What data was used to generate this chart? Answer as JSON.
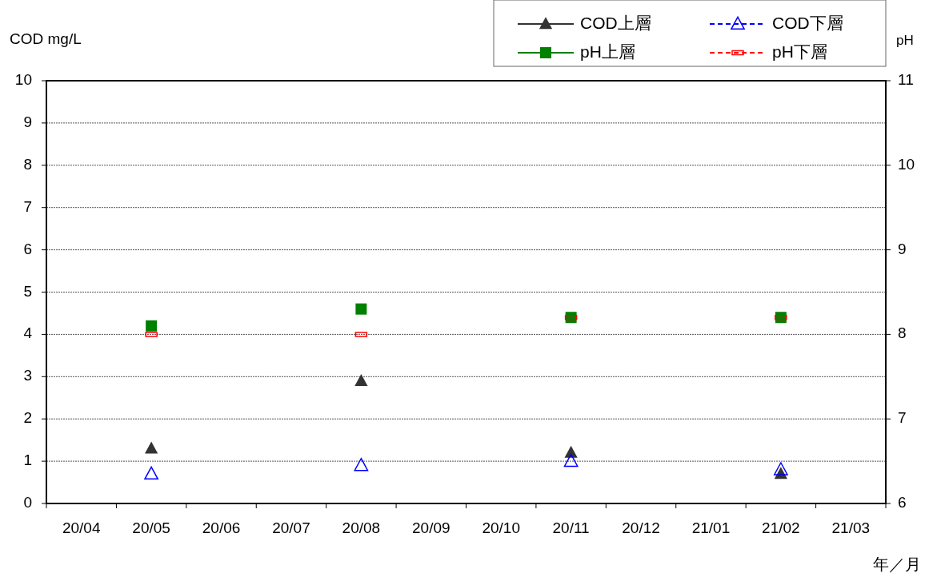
{
  "chart_data": {
    "type": "scatter",
    "ylabel": "COD mg/L",
    "y2label": "pH",
    "xlabel": "年／月",
    "categories": [
      "20/04",
      "20/05",
      "20/06",
      "20/07",
      "20/08",
      "20/09",
      "20/10",
      "20/11",
      "20/12",
      "21/01",
      "21/02",
      "21/03"
    ],
    "series": [
      {
        "name": "COD上層",
        "color": "#333333",
        "marker": "triangle",
        "line_style": "solid",
        "values": [
          null,
          1.3,
          null,
          null,
          2.9,
          null,
          null,
          1.2,
          null,
          null,
          0.7,
          null
        ]
      },
      {
        "name": "COD下層",
        "color": "#0000ff",
        "marker": "triangle",
        "line_style": "dashed",
        "values": [
          null,
          0.7,
          null,
          null,
          0.9,
          null,
          null,
          1.0,
          null,
          null,
          0.8,
          null
        ]
      },
      {
        "name": "pH上層",
        "color": "#008000",
        "marker": "square",
        "line_style": "solid",
        "axis": "y2",
        "values": [
          null,
          8.1,
          null,
          null,
          8.3,
          null,
          null,
          8.2,
          null,
          null,
          8.2,
          null
        ]
      },
      {
        "name": "pH下層",
        "color": "#ff0000",
        "marker": "square",
        "line_style": "dashed",
        "axis": "y2",
        "values": [
          null,
          8.0,
          null,
          null,
          8.0,
          null,
          null,
          8.2,
          null,
          null,
          8.2,
          null
        ]
      }
    ],
    "ylim": [
      0,
      10
    ],
    "yticks": [
      0,
      1,
      2,
      3,
      4,
      5,
      6,
      7,
      8,
      9,
      10
    ],
    "y2lim": [
      6,
      11
    ],
    "y2ticks": [
      6,
      7,
      8,
      9,
      10,
      11
    ],
    "grid": "y",
    "legend": "top right"
  }
}
